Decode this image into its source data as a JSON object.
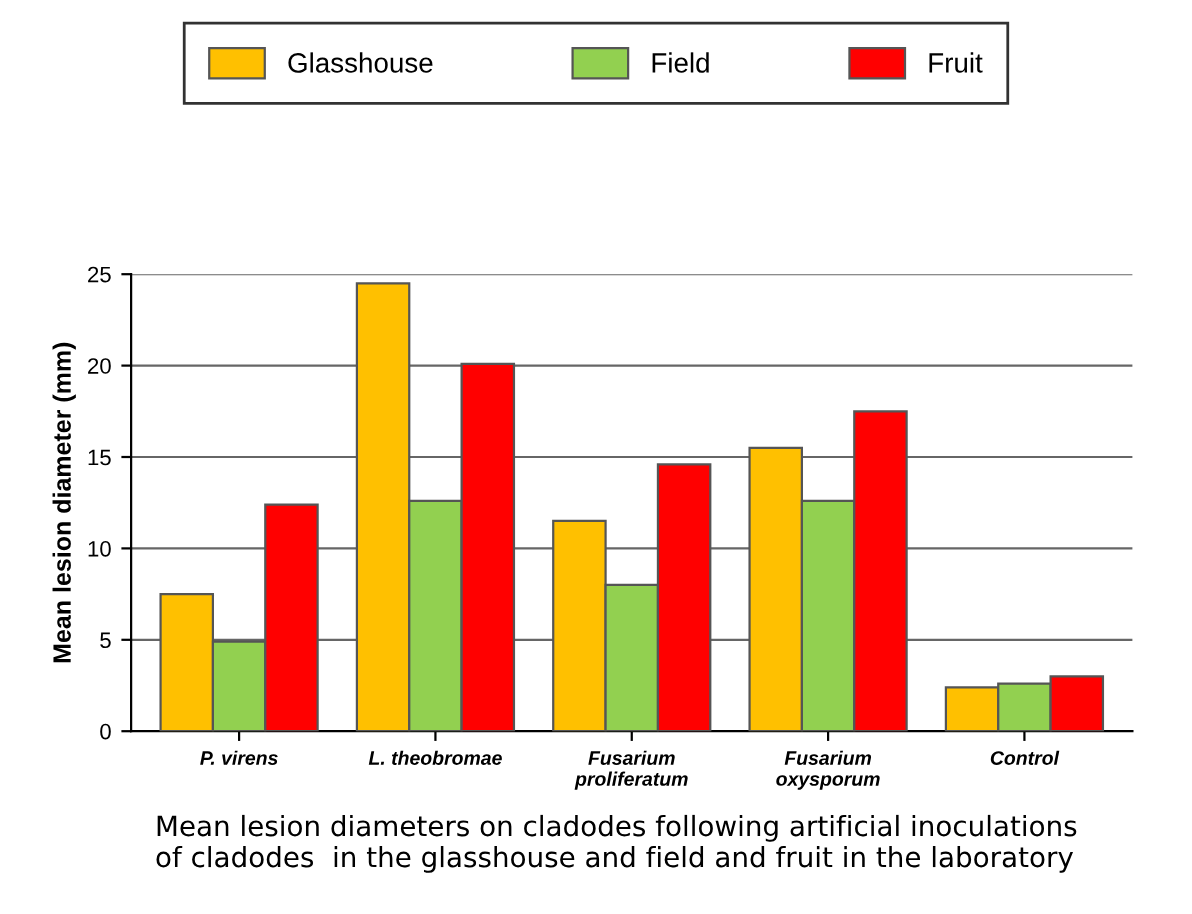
{
  "chart_data": {
    "type": "bar",
    "ylabel": "Mean lesion diameter (mm)",
    "categories": [
      "P. virens",
      "L. theobromae",
      "Fusarium\nproliferatum",
      "Fusarium\noxysporum",
      "Control"
    ],
    "series": [
      {
        "name": "Glasshouse",
        "color": "#ffc000",
        "values": [
          7.5,
          24.5,
          11.5,
          15.5,
          2.4
        ]
      },
      {
        "name": "Field",
        "color": "#92d050",
        "values": [
          4.9,
          12.6,
          8.0,
          12.6,
          2.6
        ]
      },
      {
        "name": "Fruit",
        "color": "#ff0000",
        "values": [
          12.4,
          20.1,
          14.6,
          17.5,
          3.0
        ]
      }
    ],
    "ylim": [
      0,
      25
    ],
    "yticks": [
      0,
      5,
      10,
      15,
      20,
      25
    ],
    "grid": "y",
    "legend": "top",
    "annotations": [
      "Mean lesion diameters on cladodes following artificial inoculations\nof cladodes  in the glasshouse and field and fruit in the laboratory"
    ]
  }
}
